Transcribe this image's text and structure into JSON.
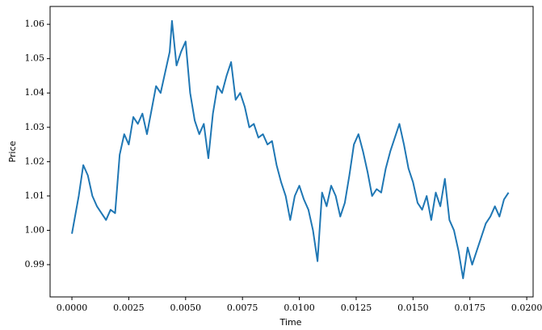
{
  "chart_data": {
    "type": "line",
    "xlabel": "Time",
    "ylabel": "Price",
    "color": "#1f77b4",
    "x": [
      0.0,
      0.0003,
      0.0005,
      0.0007,
      0.0009,
      0.0011,
      0.0013,
      0.0015,
      0.0017,
      0.0019,
      0.0021,
      0.0023,
      0.0025,
      0.0027,
      0.0029,
      0.0031,
      0.0033,
      0.0035,
      0.0037,
      0.0039,
      0.0041,
      0.0043,
      0.0044,
      0.0046,
      0.0048,
      0.005,
      0.0052,
      0.0054,
      0.0056,
      0.0058,
      0.006,
      0.0062,
      0.0064,
      0.0066,
      0.0068,
      0.007,
      0.0072,
      0.0074,
      0.0076,
      0.0078,
      0.008,
      0.0082,
      0.0084,
      0.0086,
      0.0088,
      0.009,
      0.0092,
      0.0094,
      0.0096,
      0.0098,
      0.01,
      0.0102,
      0.0104,
      0.0106,
      0.0108,
      0.011,
      0.0112,
      0.0114,
      0.0116,
      0.0118,
      0.012,
      0.0122,
      0.0124,
      0.0126,
      0.0128,
      0.013,
      0.0132,
      0.0134,
      0.0136,
      0.0138,
      0.014,
      0.0142,
      0.0144,
      0.0146,
      0.0148,
      0.015,
      0.0152,
      0.0154,
      0.0156,
      0.0158,
      0.016,
      0.0162,
      0.0164,
      0.0166,
      0.0168,
      0.017,
      0.0172,
      0.0174,
      0.0176,
      0.0178,
      0.018,
      0.0182,
      0.0184,
      0.0186,
      0.0188,
      0.019,
      0.0192
    ],
    "values": [
      0.999,
      1.01,
      1.019,
      1.016,
      1.01,
      1.007,
      1.005,
      1.003,
      1.006,
      1.005,
      1.022,
      1.028,
      1.025,
      1.033,
      1.031,
      1.034,
      1.028,
      1.035,
      1.042,
      1.04,
      1.046,
      1.052,
      1.061,
      1.048,
      1.052,
      1.055,
      1.04,
      1.032,
      1.028,
      1.031,
      1.021,
      1.034,
      1.042,
      1.04,
      1.045,
      1.049,
      1.038,
      1.04,
      1.036,
      1.03,
      1.031,
      1.027,
      1.028,
      1.025,
      1.026,
      1.019,
      1.014,
      1.01,
      1.003,
      1.01,
      1.013,
      1.009,
      1.006,
      1.0,
      0.991,
      1.011,
      1.007,
      1.013,
      1.01,
      1.004,
      1.008,
      1.016,
      1.025,
      1.028,
      1.023,
      1.017,
      1.01,
      1.012,
      1.011,
      1.018,
      1.023,
      1.027,
      1.031,
      1.025,
      1.018,
      1.014,
      1.008,
      1.006,
      1.01,
      1.003,
      1.011,
      1.007,
      1.015,
      1.003,
      1.0,
      0.994,
      0.986,
      0.995,
      0.99,
      0.994,
      0.998,
      1.002,
      1.004,
      1.007,
      1.004,
      1.009,
      1.011
    ],
    "xlim": [
      -0.00096,
      0.02028
    ],
    "ylim": [
      0.9806,
      1.0652
    ],
    "xticks": [
      {
        "value": 0,
        "label": "0.0000"
      },
      {
        "value": 0.0025,
        "label": "0.0025"
      },
      {
        "value": 0.005,
        "label": "0.0050"
      },
      {
        "value": 0.0075,
        "label": "0.0075"
      },
      {
        "value": 0.01,
        "label": "0.0100"
      },
      {
        "value": 0.0125,
        "label": "0.0125"
      },
      {
        "value": 0.015,
        "label": "0.0150"
      },
      {
        "value": 0.0175,
        "label": "0.0175"
      },
      {
        "value": 0.02,
        "label": "0.0200"
      }
    ],
    "yticks": [
      0.99,
      {
        "value": 1,
        "label": "1.00"
      },
      1.01,
      1.02,
      1.03,
      1.04,
      1.05,
      1.06
    ]
  }
}
